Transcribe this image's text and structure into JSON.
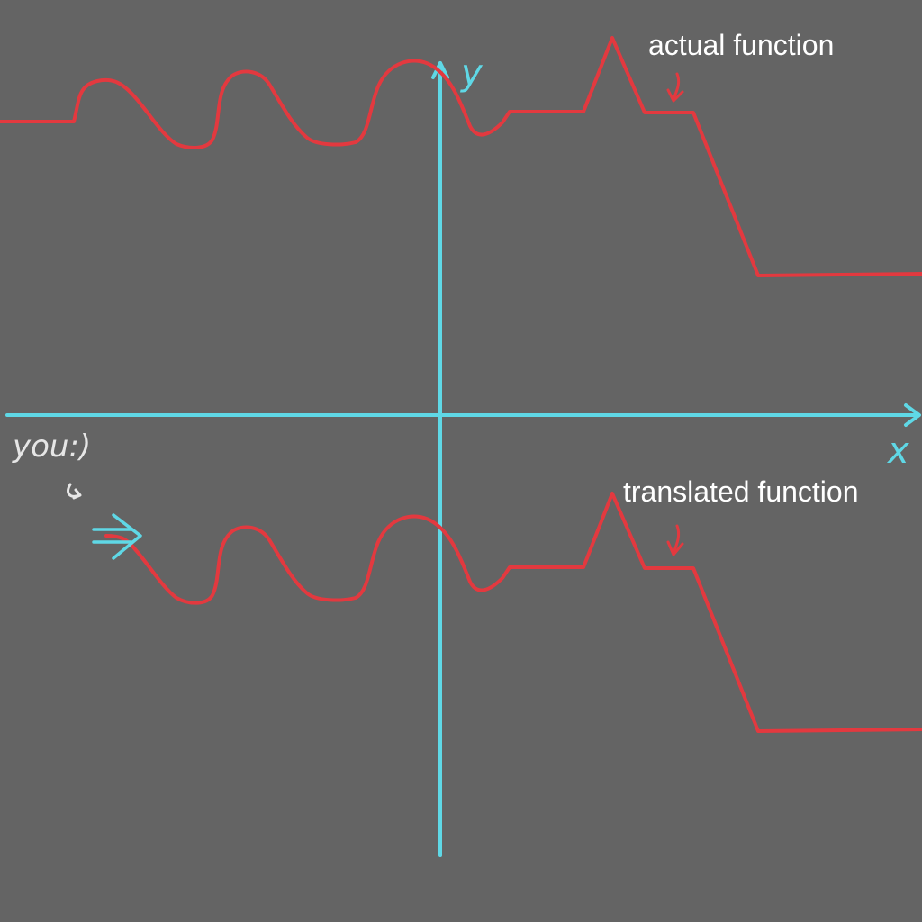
{
  "labels": {
    "actual": "actual function",
    "translated": "translated function",
    "y_axis": "y",
    "x_axis": "x",
    "you": "you:)"
  },
  "colors": {
    "background": "#646464",
    "axes": "#5fd8e6",
    "function": "#e3393f",
    "label_text": "#ffffff",
    "handwriting": "#e6e6e6"
  }
}
